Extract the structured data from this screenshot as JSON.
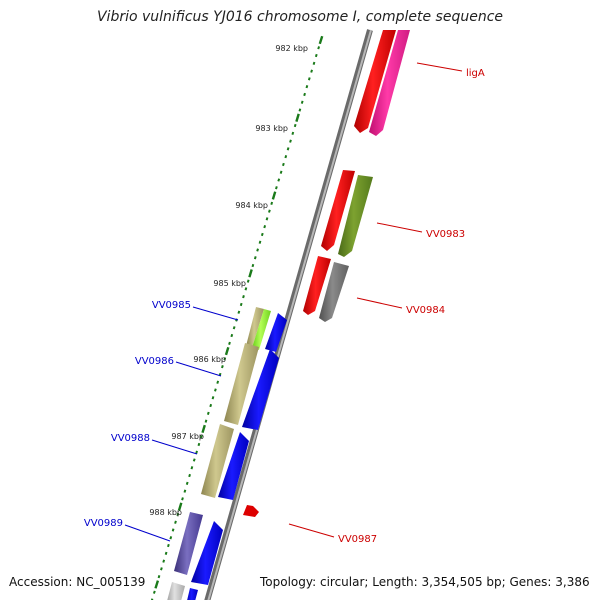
{
  "title": "Vibrio vulnificus YJ016 chromosome I, complete sequence",
  "footer": {
    "accession": "Accession: NC_005139",
    "topology": "Topology: circular; Length: 3,354,505 bp; Genes: 3,386"
  },
  "scale": {
    "unit": "kbp",
    "ticks": [
      "982 kbp",
      "983 kbp",
      "984 kbp",
      "985 kbp",
      "986 kbp",
      "987 kbp",
      "988 kbp"
    ]
  },
  "gene_labels": {
    "ligA": "ligA",
    "VV0983": "VV0983",
    "VV0984": "VV0984",
    "VV0987": "VV0987",
    "VV0985": "VV0985",
    "VV0986": "VV0986",
    "VV0988": "VV0988",
    "VV0989": "VV0989"
  },
  "colors": {
    "forward_label": "#cc0000",
    "reverse_label": "#0000cc",
    "tick_mark": "#1a7a1a",
    "backbone": "#8c8c8c"
  }
}
